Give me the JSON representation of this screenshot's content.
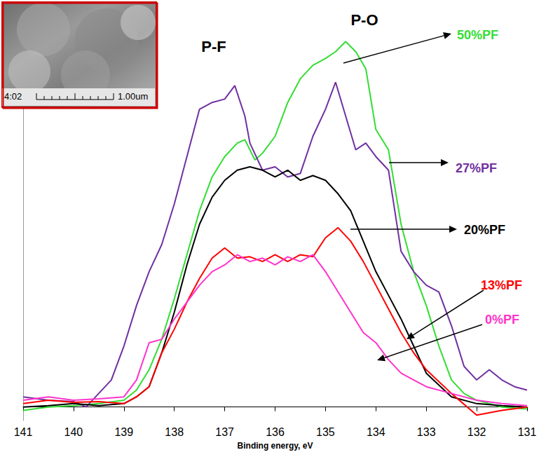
{
  "chart_data": {
    "type": "line",
    "x_label": "Binding energy, eV",
    "xlim": [
      141,
      131
    ],
    "xticks": [
      141,
      140,
      139,
      138,
      137,
      136,
      135,
      134,
      133,
      132,
      131
    ],
    "ylim": [
      -20,
      560
    ],
    "tick_labels": "x",
    "grid": false,
    "annotations": [
      "P-F",
      "P-O"
    ],
    "series": [
      {
        "name": "50%PF",
        "color": "#33dd33",
        "x": [
          141,
          140.5,
          140,
          139.5,
          139,
          138.75,
          138.5,
          138.25,
          138,
          137.75,
          137.5,
          137.25,
          137,
          136.75,
          136.6,
          136.4,
          136.25,
          136,
          135.75,
          135.5,
          135.25,
          135,
          134.8,
          134.6,
          134.4,
          134.2,
          134,
          133.75,
          133.5,
          133.25,
          133,
          132.75,
          132.5,
          132.25,
          132,
          131.5,
          131
        ],
        "values": [
          -5,
          0,
          2,
          5,
          10,
          25,
          55,
          100,
          160,
          225,
          290,
          340,
          370,
          390,
          395,
          365,
          375,
          400,
          450,
          485,
          505,
          515,
          525,
          540,
          525,
          500,
          410,
          380,
          270,
          200,
          150,
          90,
          40,
          20,
          10,
          0,
          -3
        ]
      },
      {
        "name": "27%PF",
        "color": "#7030a0",
        "x": [
          141,
          140.5,
          140,
          139.75,
          139.5,
          139.25,
          139,
          138.75,
          138.5,
          138.25,
          138,
          137.75,
          137.5,
          137.25,
          137,
          136.8,
          136.6,
          136.5,
          136.25,
          136,
          135.75,
          135.5,
          135.25,
          135,
          134.8,
          134.6,
          134.4,
          134.2,
          134,
          133.75,
          133.5,
          133.25,
          133,
          132.75,
          132.5,
          132.25,
          132,
          131.75,
          131.5,
          131.25,
          131
        ],
        "values": [
          15,
          10,
          8,
          0,
          20,
          40,
          90,
          150,
          200,
          240,
          300,
          370,
          440,
          450,
          455,
          475,
          430,
          390,
          350,
          355,
          340,
          345,
          400,
          440,
          480,
          430,
          380,
          390,
          370,
          350,
          230,
          200,
          180,
          170,
          120,
          60,
          40,
          55,
          40,
          30,
          25
        ]
      },
      {
        "name": "20%PF",
        "color": "#000000",
        "x": [
          141,
          140.5,
          140,
          139.5,
          139,
          138.75,
          138.5,
          138.25,
          138,
          137.75,
          137.5,
          137.25,
          137,
          136.75,
          136.5,
          136.25,
          136,
          135.75,
          135.5,
          135.25,
          135,
          134.75,
          134.5,
          134.25,
          134,
          133.75,
          133.5,
          133.25,
          133,
          132.5,
          132,
          131.5,
          131
        ],
        "values": [
          0,
          2,
          5,
          2,
          5,
          15,
          30,
          80,
          140,
          210,
          270,
          310,
          335,
          350,
          355,
          350,
          340,
          350,
          335,
          342,
          335,
          315,
          290,
          245,
          200,
          165,
          130,
          90,
          50,
          15,
          5,
          2,
          0
        ]
      },
      {
        "name": "13%PF",
        "color": "#ff0000",
        "x": [
          141,
          140.5,
          140,
          139.5,
          139,
          138.75,
          138.5,
          138.25,
          138,
          137.75,
          137.5,
          137.25,
          137,
          136.75,
          136.5,
          136.25,
          136,
          135.75,
          135.5,
          135.25,
          135,
          134.75,
          134.5,
          134.25,
          134,
          133.75,
          133.5,
          133.25,
          133,
          132.5,
          132,
          131.5,
          131
        ],
        "values": [
          5,
          10,
          7,
          8,
          5,
          15,
          30,
          80,
          115,
          155,
          190,
          220,
          235,
          220,
          222,
          215,
          225,
          215,
          225,
          222,
          250,
          265,
          245,
          215,
          180,
          145,
          110,
          80,
          55,
          20,
          -12,
          -5,
          0
        ]
      },
      {
        "name": "0%PF",
        "color": "#ff33cc",
        "x": [
          141,
          140.5,
          140,
          139.5,
          139,
          138.75,
          138.5,
          138.25,
          138,
          137.75,
          137.5,
          137.25,
          137,
          136.75,
          136.5,
          136.25,
          136,
          135.75,
          135.5,
          135.25,
          135,
          134.75,
          134.5,
          134.25,
          134,
          133.75,
          133.5,
          133.25,
          133,
          132.5,
          132,
          131.5,
          131
        ],
        "values": [
          10,
          15,
          10,
          12,
          15,
          40,
          95,
          100,
          130,
          155,
          180,
          200,
          210,
          225,
          215,
          220,
          210,
          222,
          215,
          225,
          200,
          170,
          140,
          110,
          95,
          70,
          50,
          40,
          30,
          20,
          10,
          5,
          2
        ]
      }
    ]
  },
  "inset": {
    "time_label": "4:02",
    "scale_label": "1.00um"
  }
}
